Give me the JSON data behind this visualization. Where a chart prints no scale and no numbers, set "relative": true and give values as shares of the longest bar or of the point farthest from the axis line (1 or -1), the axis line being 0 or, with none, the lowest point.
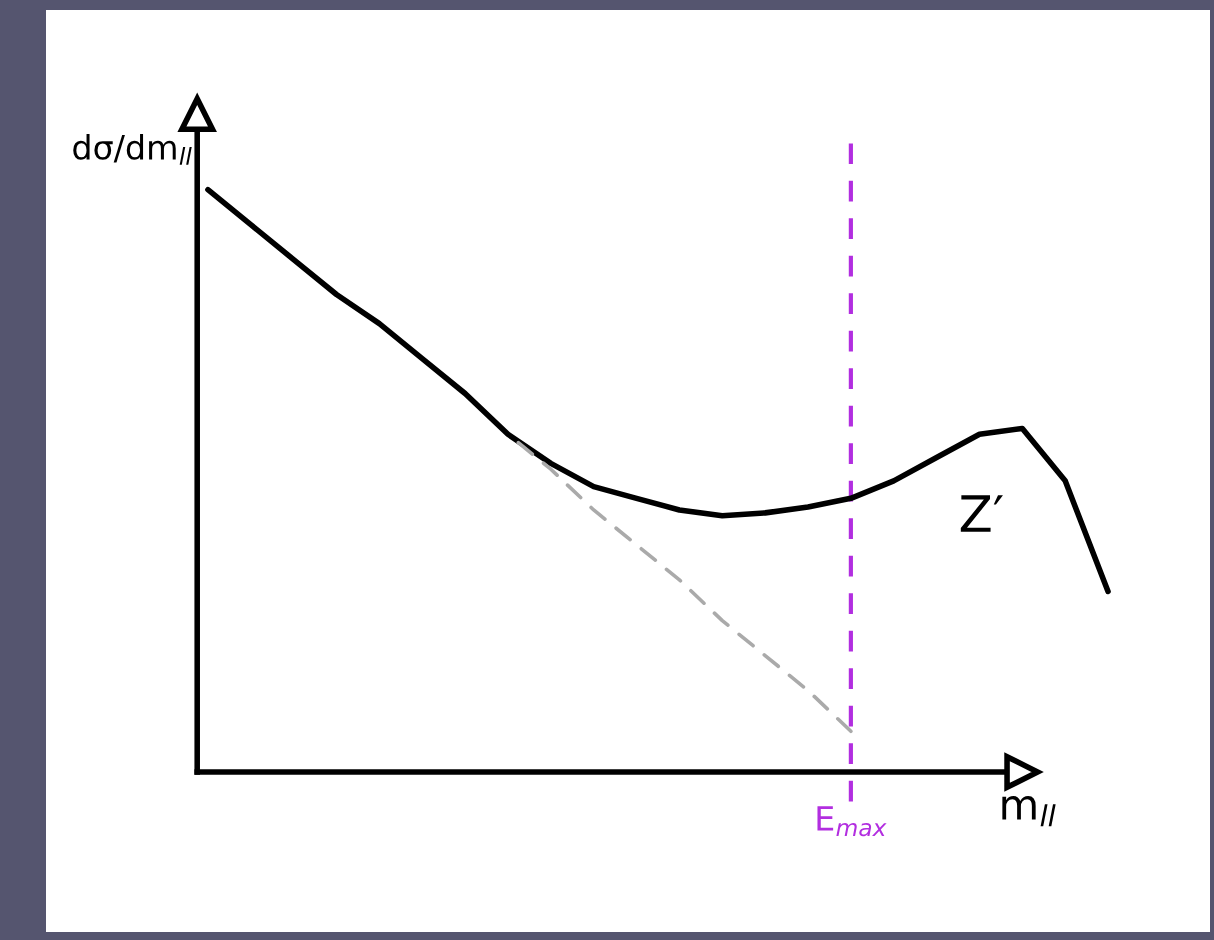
{
  "chart_data": {
    "type": "line",
    "relative": true,
    "xlabel": "m$_{ll}$",
    "ylabel": "dσ/dm$_{ll}$",
    "categories": [
      null,
      null,
      null,
      null,
      null,
      null,
      null,
      null,
      null,
      null,
      null,
      null,
      null,
      null,
      null,
      null,
      null,
      null,
      null,
      null,
      null,
      null
    ],
    "series": [
      {
        "color": "#000000",
        "line_style": "solid",
        "values": [
          1.0,
          0.94,
          0.88,
          0.82,
          0.77,
          0.71,
          0.65,
          0.58,
          0.53,
          0.49,
          0.47,
          0.45,
          0.44,
          0.445,
          0.455,
          0.47,
          0.5,
          0.54,
          0.58,
          0.59,
          0.5,
          0.31
        ]
      },
      {
        "color": "#aaaaaa",
        "line_style": "dashed",
        "values": [
          null,
          null,
          null,
          null,
          null,
          null,
          null,
          0.58,
          0.52,
          0.45,
          0.39,
          0.33,
          0.26,
          0.2,
          0.14,
          0.07,
          null,
          null,
          null,
          null,
          null,
          null
        ]
      }
    ],
    "annotations": [
      "Z′",
      "E$_{max}$"
    ]
  }
}
